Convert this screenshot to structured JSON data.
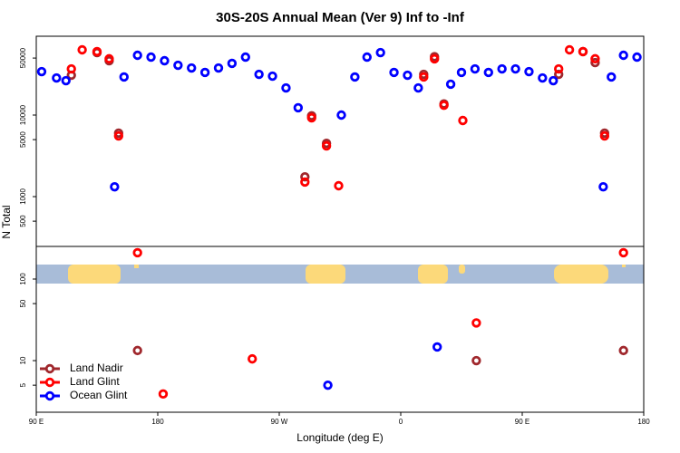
{
  "chart_data": [
    {
      "type": "scatter",
      "title": "30S-20S Annual Mean (Ver 9)   Inf to -Inf",
      "ylabel": "N Total",
      "log_y": true,
      "xlim": [
        -270,
        180
      ],
      "ylim": [
        245,
        92600
      ],
      "yticks": [
        500,
        1000,
        5000,
        10000,
        50000
      ],
      "series": [
        {
          "name": "Land Nadir",
          "color": "#a0282d",
          "x": [
            -244,
            -225,
            -216,
            -209,
            -71,
            -66,
            -55,
            17,
            25,
            32,
            117,
            135,
            144,
            151
          ],
          "values": [
            30800,
            58400,
            46400,
            6000,
            1750,
            9800,
            4500,
            31600,
            52000,
            13700,
            31600,
            60000,
            44000,
            6000
          ]
        },
        {
          "name": "Land Glint",
          "color": "#ff0000",
          "x": [
            -244,
            -236,
            -225,
            -216,
            -209,
            -71,
            -66,
            -55,
            -46,
            17,
            25,
            32,
            46,
            117,
            125,
            135,
            144,
            151
          ],
          "values": [
            36800,
            63100,
            60000,
            49000,
            5550,
            1510,
            9260,
            4190,
            1360,
            29300,
            48900,
            13200,
            8580,
            36800,
            63100,
            60000,
            49000,
            5550
          ]
        },
        {
          "name": "Ocean Glint",
          "color": "#0000ff",
          "x": [
            -266,
            -255,
            -248,
            -212,
            -205,
            -195,
            -185,
            -175,
            -165,
            -155,
            -145,
            -135,
            -125,
            -115,
            -105,
            -95,
            -85,
            -76,
            -44,
            -34,
            -25,
            -15,
            -5,
            5,
            13,
            37,
            45,
            55,
            65,
            75,
            85,
            95,
            105,
            113,
            150,
            156,
            165,
            175
          ],
          "values": [
            34100,
            28500,
            26400,
            1320,
            29300,
            54100,
            51400,
            46400,
            40800,
            37800,
            33300,
            37800,
            43000,
            51400,
            31600,
            30000,
            21500,
            12300,
            10000,
            29300,
            51400,
            58400,
            33300,
            30800,
            21500,
            23900,
            33300,
            36800,
            33300,
            36800,
            36800,
            34100,
            28500,
            26400,
            1320,
            29300,
            54100,
            51400
          ]
        }
      ]
    },
    {
      "type": "scatter",
      "xlabel": "Longitude (deg E)",
      "log_y": true,
      "legend": "lower left",
      "xlim": [
        -270,
        180
      ],
      "ylim": [
        2.33,
        251
      ],
      "xticks": [
        {
          "value": -270,
          "label": "90 E"
        },
        {
          "value": -180,
          "label": "180"
        },
        {
          "value": -90,
          "label": "90 W"
        },
        0,
        {
          "value": 90,
          "label": "90 E"
        },
        180
      ],
      "yticks": [
        5,
        10,
        50,
        100
      ],
      "series": [
        {
          "name": "Land Nadir",
          "color": "#a0282d",
          "x": [
            -195,
            56,
            165
          ],
          "values": [
            13.3,
            10,
            13.3
          ]
        },
        {
          "name": "Land Glint",
          "color": "#ff0000",
          "x": [
            -195,
            -176,
            -110,
            56,
            165
          ],
          "values": [
            210,
            3.9,
            10.5,
            29,
            210
          ]
        },
        {
          "name": "Ocean Glint",
          "color": "#0000ff",
          "x": [
            -54,
            27
          ],
          "values": [
            5,
            14.7
          ]
        }
      ]
    }
  ]
}
